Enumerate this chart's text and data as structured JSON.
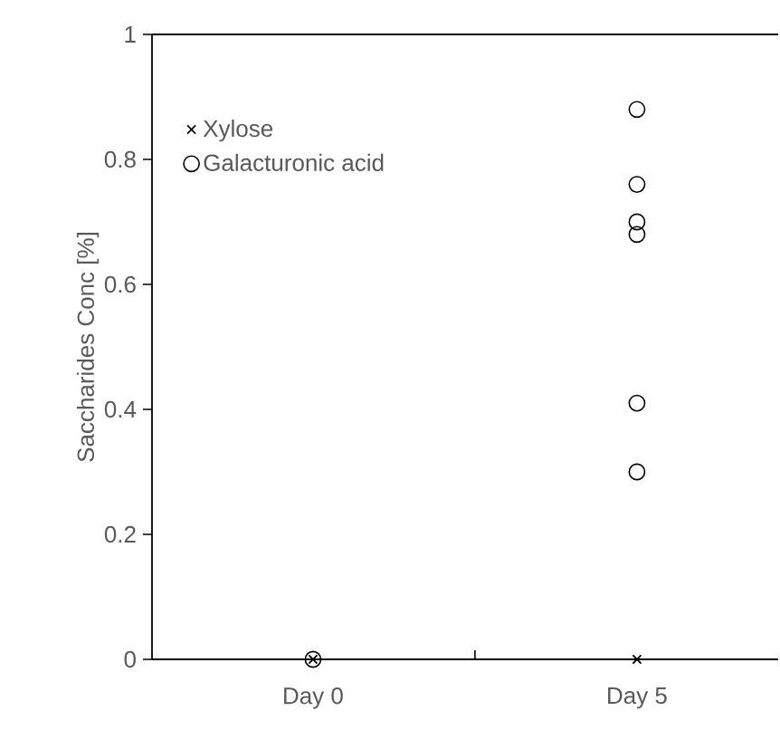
{
  "chart_data": {
    "type": "scatter",
    "ylabel": "Saccharides Conc [%]",
    "categories": [
      "Day 0",
      "Day 5"
    ],
    "ylim": [
      0,
      1
    ],
    "yticks": [
      0,
      0.2,
      0.4,
      0.6,
      0.8,
      1
    ],
    "legend": "top left",
    "series": [
      {
        "name": "Xylose",
        "color": "#000000",
        "marker": "cross",
        "x": [
          "Day 0",
          "Day 5"
        ],
        "values": [
          0,
          0
        ]
      },
      {
        "name": "Galacturonic acid",
        "color": "#000000",
        "marker": "circle",
        "x": [
          "Day 0",
          "Day 5",
          "Day 5",
          "Day 5",
          "Day 5",
          "Day 5",
          "Day 5"
        ],
        "values": [
          0,
          0.88,
          0.76,
          0.7,
          0.68,
          0.41,
          0.3
        ]
      }
    ]
  }
}
